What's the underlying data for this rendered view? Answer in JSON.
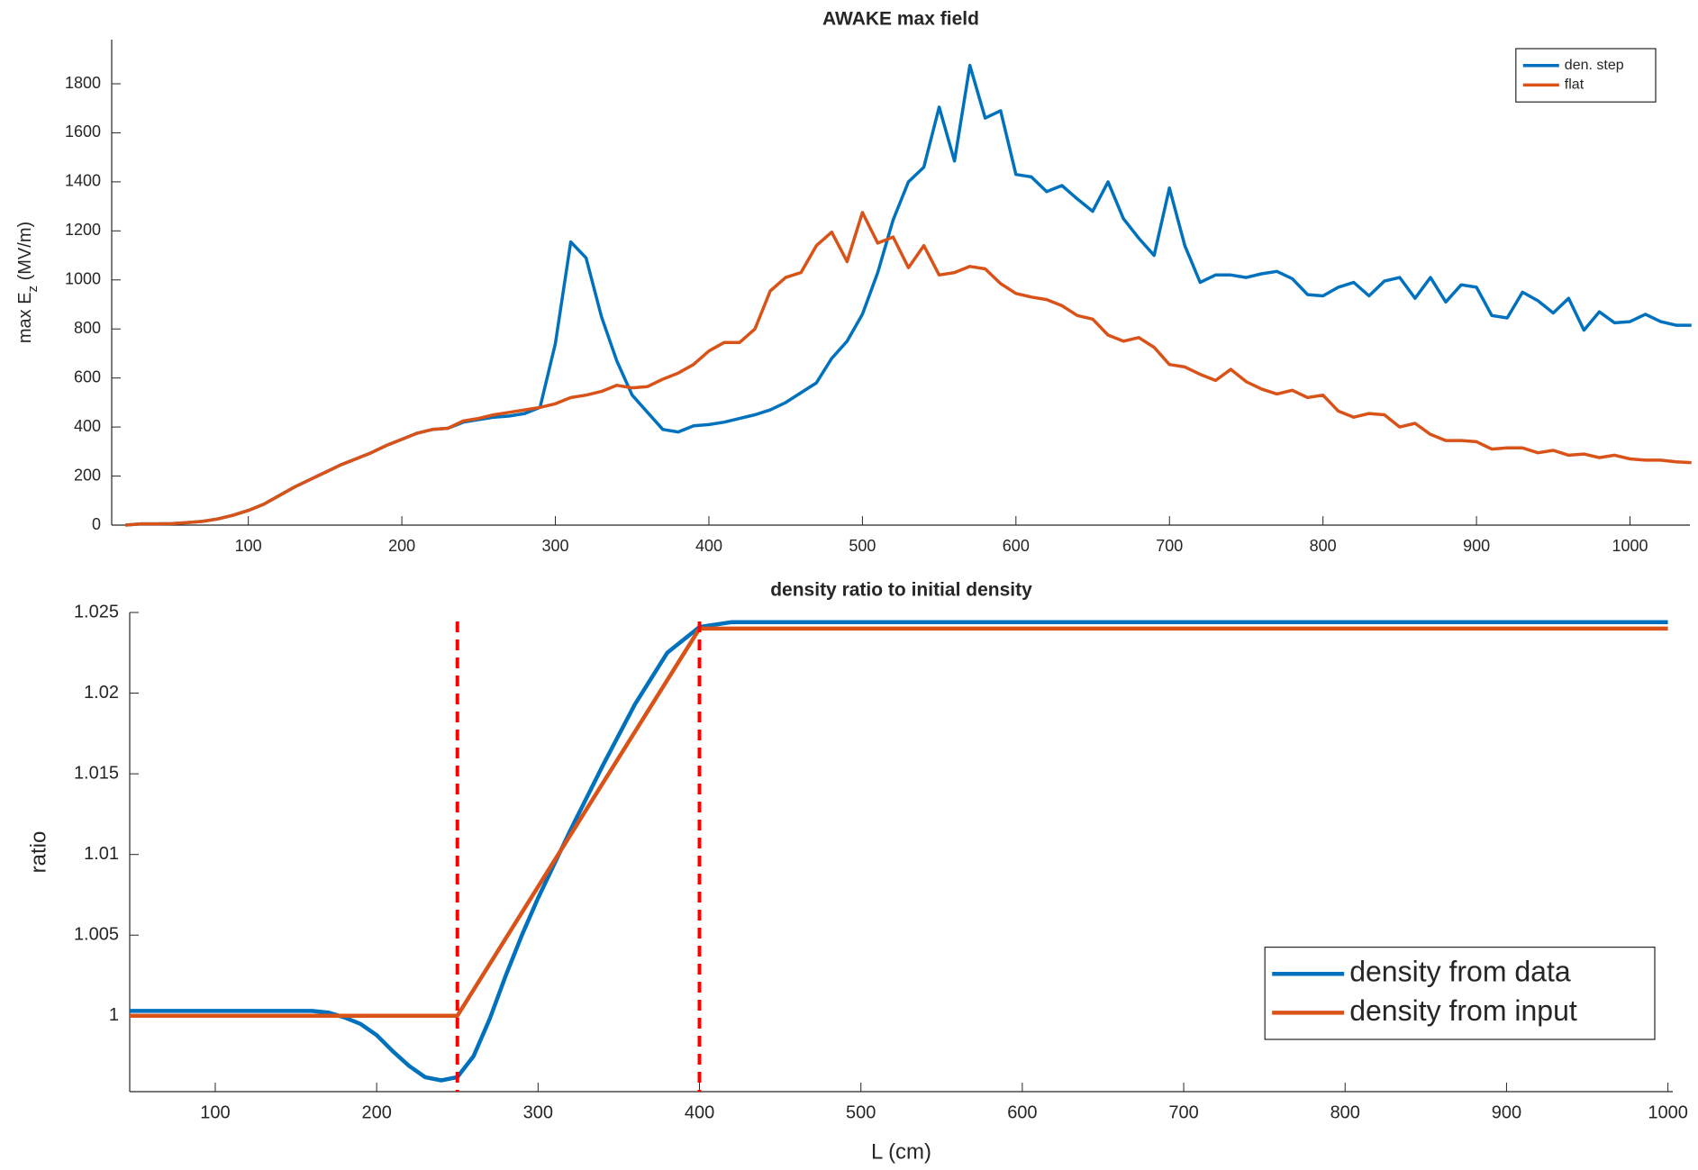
{
  "chart_data": [
    {
      "type": "line",
      "title": "AWAKE max field",
      "ylabel_parts": [
        "max E",
        "z",
        " (MV/m)"
      ],
      "x": [
        20,
        30,
        40,
        50,
        60,
        70,
        80,
        90,
        100,
        110,
        120,
        130,
        140,
        150,
        160,
        170,
        180,
        190,
        200,
        210,
        220,
        230,
        240,
        250,
        260,
        270,
        280,
        290,
        300,
        310,
        320,
        330,
        340,
        350,
        360,
        370,
        380,
        390,
        400,
        410,
        420,
        430,
        440,
        450,
        460,
        470,
        480,
        490,
        500,
        510,
        520,
        530,
        540,
        550,
        560,
        570,
        580,
        590,
        600,
        610,
        620,
        630,
        640,
        650,
        660,
        670,
        680,
        690,
        700,
        710,
        720,
        730,
        740,
        750,
        760,
        770,
        780,
        790,
        800,
        810,
        820,
        830,
        840,
        850,
        860,
        870,
        880,
        890,
        900,
        910,
        920,
        930,
        940,
        950,
        960,
        970,
        980,
        990,
        1000,
        1010,
        1020,
        1030,
        1040
      ],
      "series": [
        {
          "name": "den. step",
          "color": "#0072BD",
          "values": [
            0,
            5,
            5,
            6,
            10,
            15,
            25,
            40,
            60,
            85,
            120,
            155,
            185,
            215,
            245,
            270,
            295,
            325,
            350,
            375,
            390,
            395,
            420,
            430,
            440,
            445,
            455,
            480,
            740,
            1155,
            1090,
            850,
            670,
            530,
            460,
            390,
            380,
            405,
            410,
            420,
            435,
            450,
            470,
            500,
            540,
            580,
            680,
            750,
            860,
            1030,
            1245,
            1400,
            1460,
            1705,
            1485,
            1875,
            1660,
            1690,
            1430,
            1420,
            1360,
            1385,
            1330,
            1280,
            1400,
            1250,
            1170,
            1100,
            1375,
            1140,
            990,
            1020,
            1020,
            1010,
            1025,
            1035,
            1005,
            940,
            935,
            970,
            990,
            935,
            995,
            1010,
            925,
            1010,
            910,
            980,
            970,
            855,
            845,
            950,
            915,
            865,
            925,
            795,
            870,
            825,
            830,
            860,
            830,
            815,
            815
          ]
        },
        {
          "name": "flat",
          "color": "#D95319",
          "values": [
            0,
            5,
            5,
            6,
            10,
            15,
            25,
            40,
            60,
            85,
            120,
            155,
            185,
            215,
            245,
            270,
            295,
            325,
            350,
            375,
            390,
            395,
            425,
            435,
            450,
            460,
            470,
            480,
            495,
            520,
            530,
            545,
            570,
            560,
            565,
            595,
            620,
            655,
            710,
            745,
            745,
            800,
            955,
            1010,
            1030,
            1140,
            1195,
            1075,
            1275,
            1150,
            1175,
            1050,
            1140,
            1020,
            1030,
            1055,
            1045,
            985,
            945,
            930,
            920,
            895,
            855,
            840,
            775,
            750,
            765,
            725,
            655,
            645,
            615,
            590,
            635,
            585,
            555,
            535,
            550,
            520,
            530,
            465,
            440,
            455,
            450,
            400,
            415,
            370,
            345,
            345,
            340,
            310,
            315,
            315,
            295,
            305,
            285,
            290,
            275,
            285,
            270,
            265,
            265,
            258,
            255
          ]
        }
      ],
      "xlim": [
        11,
        1039
      ],
      "ylim": [
        0,
        1980
      ],
      "xticks": [
        100,
        200,
        300,
        400,
        500,
        600,
        700,
        800,
        900,
        1000
      ],
      "yticks": [
        0,
        200,
        400,
        600,
        800,
        1000,
        1200,
        1400,
        1600,
        1800
      ],
      "legend": "upper right"
    },
    {
      "type": "line",
      "title": "density ratio to initial density",
      "xlabel": "L (cm)",
      "ylabel": "ratio",
      "series": [
        {
          "name": "density from data",
          "color": "#0072BD",
          "x": [
            47,
            100,
            160,
            170,
            180,
            190,
            200,
            210,
            220,
            230,
            240,
            250,
            260,
            270,
            280,
            290,
            300,
            320,
            340,
            360,
            380,
            400,
            420,
            1000
          ],
          "values": [
            1.0003,
            1.0003,
            1.0003,
            1.0002,
            0.9999,
            0.9995,
            0.9988,
            0.9978,
            0.9969,
            0.9962,
            0.996,
            0.9962,
            0.9975,
            0.9998,
            1.0025,
            1.005,
            1.0073,
            1.0115,
            1.0155,
            1.0193,
            1.0225,
            1.0241,
            1.0244,
            1.0244
          ]
        },
        {
          "name": "density from input",
          "color": "#D95319",
          "x": [
            47,
            250,
            400,
            1000
          ],
          "values": [
            1,
            1,
            1.024,
            1.024
          ]
        }
      ],
      "vlines": [
        250,
        400
      ],
      "vline_color": "#ff0000",
      "xlim": [
        47,
        1003
      ],
      "ylim": [
        0.9953,
        1.025
      ],
      "xticks": [
        100,
        200,
        300,
        400,
        500,
        600,
        700,
        800,
        900,
        1000
      ],
      "yticks": [
        1,
        1.005,
        1.01,
        1.015,
        1.02,
        1.025
      ],
      "legend": "lower right"
    }
  ]
}
